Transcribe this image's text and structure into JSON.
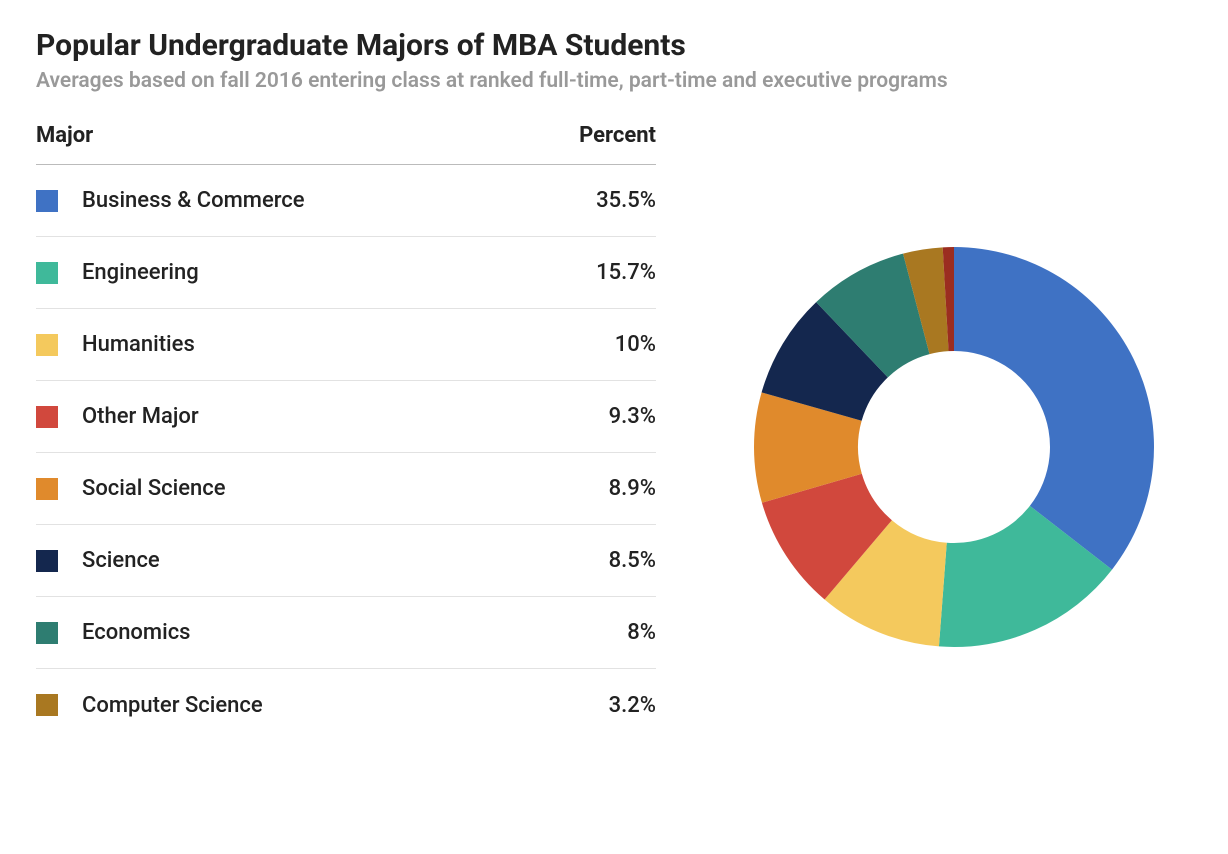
{
  "title": "Popular Undergraduate Majors of MBA Students",
  "subtitle": "Averages based on fall 2016 entering class at ranked full-time, part-time and executive programs",
  "columns": {
    "major": "Major",
    "percent": "Percent"
  },
  "chart": {
    "type": "donut",
    "background_color": "#ffffff",
    "outer_radius": 200,
    "inner_radius": 96,
    "start_angle_deg": 0,
    "direction": "clockwise",
    "rows": [
      {
        "label": "Business & Commerce",
        "value": 35.5,
        "display": "35.5%",
        "color": "#3f72c4"
      },
      {
        "label": "Engineering",
        "value": 15.7,
        "display": "15.7%",
        "color": "#3fb99a"
      },
      {
        "label": "Humanities",
        "value": 10,
        "display": "10%",
        "color": "#f4c95d"
      },
      {
        "label": "Other Major",
        "value": 9.3,
        "display": "9.3%",
        "color": "#d1483d"
      },
      {
        "label": "Social Science",
        "value": 8.9,
        "display": "8.9%",
        "color": "#e08a2c"
      },
      {
        "label": "Science",
        "value": 8.5,
        "display": "8.5%",
        "color": "#14274e"
      },
      {
        "label": "Economics",
        "value": 8,
        "display": "8%",
        "color": "#2e7d71"
      },
      {
        "label": "Computer Science",
        "value": 3.2,
        "display": "3.2%",
        "color": "#a97821"
      }
    ],
    "extra_slices": [
      {
        "value": 0.9,
        "color": "#9b2d20"
      }
    ],
    "title_fontsize": 30,
    "subtitle_fontsize": 21,
    "row_fontsize": 22,
    "text_color": "#222222",
    "subtitle_color": "#999999",
    "divider_color": "#e2e2e2",
    "header_divider_color": "#bbbbbb"
  }
}
